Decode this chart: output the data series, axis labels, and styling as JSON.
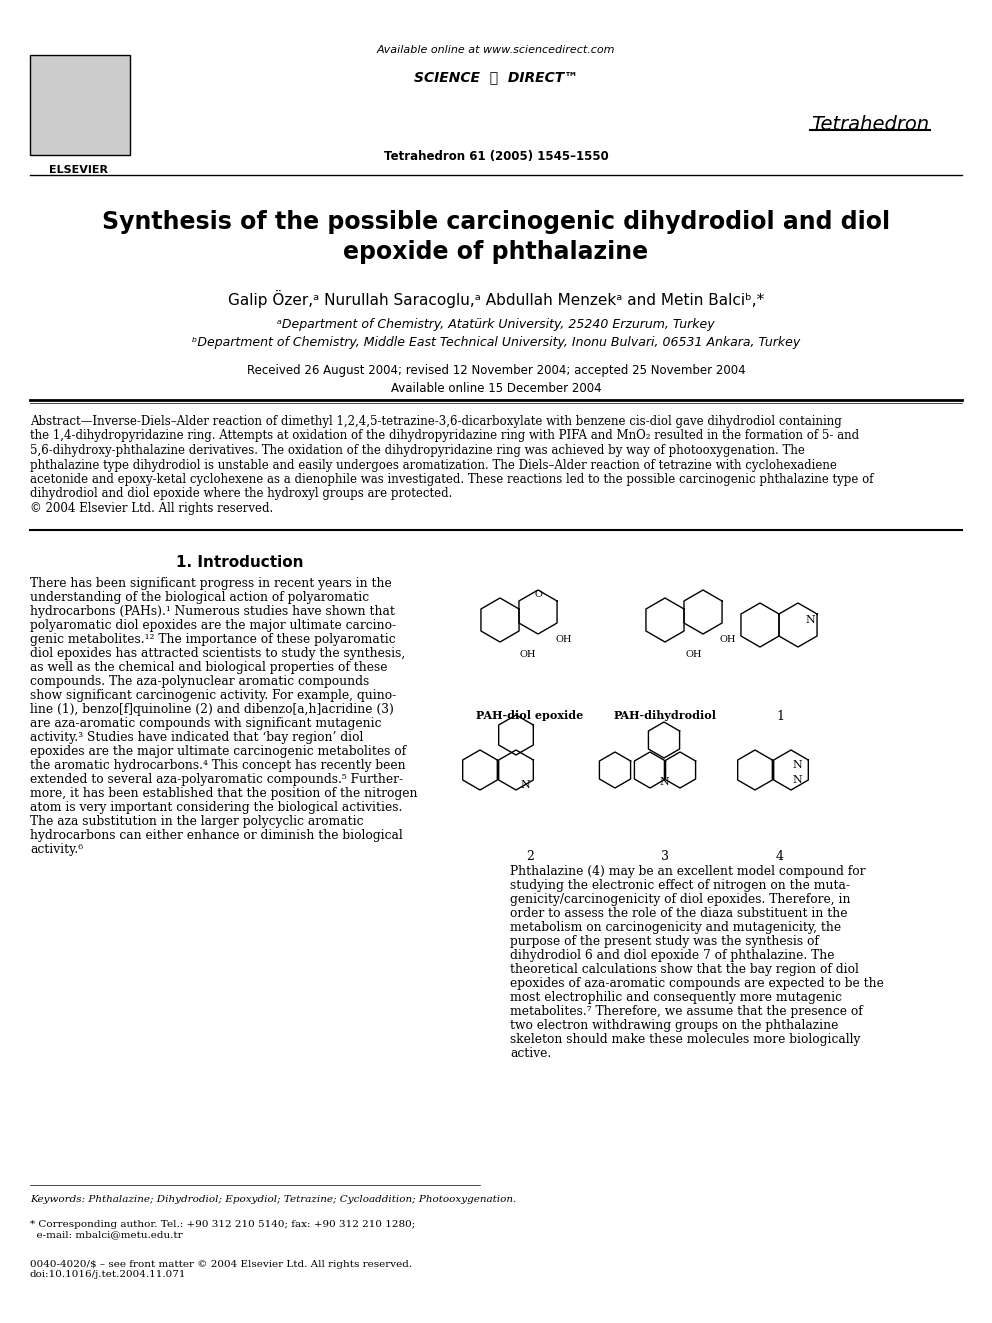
{
  "title": "Synthesis of the possible carcinogenic dihydrodiol and diol\nepoxide of phthalazine",
  "authors": "Galip Özer,ᵃ Nurullah Saracoglu,ᵃ Abdullah Menzekᵃ and Metin Balciᵇ,*",
  "affil_a": "ᵃDepartment of Chemistry, Atatürk University, 25240 Erzurum, Turkey",
  "affil_b": "ᵇDepartment of Chemistry, Middle East Technical University, Inonu Bulvari, 06531 Ankara, Turkey",
  "received": "Received 26 August 2004; revised 12 November 2004; accepted 25 November 2004",
  "available_online": "Available online 15 December 2004",
  "journal_header": "Available online at www.sciencedirect.com",
  "journal_name": "Tetrahedron",
  "journal_issue": "Tetrahedron 61 (2005) 1545–1550",
  "elsevier_text": "ELSEVIER",
  "abstract_title": "Abstract",
  "abstract_text": "—Inverse-Diels–Alder reaction of dimethyl 1,2,4,5-tetrazine-3,6-dicarboxylate with benzene cis-diol gave dihydrodiol containing the 1,4-dihydropyridazine ring. Attempts at oxidation of the dihydropyridazine ring with PIFA and MnO₂ resulted in the formation of 5- and 5,6-dihydroxy-phthalazine derivatives. The oxidation of the dihydropyridazine ring was achieved by way of photooxygenation. The phthalazine type dihydrodiol is unstable and easily undergoes aromatization. The Diels–Alder reaction of tetrazine with cyclohexadiene acetonide and epoxy-ketal cyclohexene as a dienophile was investigated. These reactions led to the possible carcinogenic phthalazine type of dihydrodiol and diol epoxide where the hydroxyl groups are protected.\n© 2004 Elsevier Ltd. All rights reserved.",
  "section1_title": "1. Introduction",
  "intro_text": "There has been significant progress in recent years in the understanding of the biological action of polyaromatic hydrocarbons (PAHs).¹ Numerous studies have shown that polyaromatic diol epoxides are the major ultimate carcinogenic metabolites.¹² The importance of these polyaromatic diol epoxides has attracted scientists to study the synthesis, as well as the chemical and biological properties of these compounds. The aza-polynuclear aromatic compounds show significant carcinogenic activity. For example, quinoline (1), benzo[f]quinoline (2) and dibenzo[a,h]acridine (3) are aza-aromatic compounds with significant mutagenic activity.³ Studies have indicated that ‘bay region’ diol epoxides are the major ultimate carcinogenic metabolites of the aromatic hydrocarbons.⁴ This concept has recently been extended to several aza-polyaromatic compounds.⁵ Furthermore, it has been established that the position of the nitrogen atom is very important considering the biological activities. The aza substitution in the larger polycyclic aromatic hydrocarbons can either enhance or diminish the biological activity.⁶",
  "intro_text2": "Phthalazine (4) may be an excellent model compound for studying the electronic effect of nitrogen on the mutagenicity/carcinogenicity of diol epoxides. Therefore, in order to assess the role of the diaza substituent in the metabolism on carcinogenicity and mutagenicity, the purpose of the present study was the synthesis of dihydrodiol 6 and diol epoxide 7 of phthalazine. The theoretical calculations show that the bay region of diol epoxides of aza-aromatic compounds are expected to be the most electrophilic and consequently more mutagenic metabolites.⁷ Therefore, we assume that the presence of two electron withdrawing groups on the phthalazine skeleton should make these molecules more biologically active.",
  "keywords_text": "Keywords: Phthalazine; Dihydrodiol; Epoxydiol; Tetrazine; Cycloaddition; Photooxygenation.",
  "corresponding": "* Corresponding author. Tel.: +90 312 210 5140; fax: +90 312 210 1280;\n  e-mail: mbalci@metu.edu.tr",
  "footer": "0040-4020/$ – see front matter © 2004 Elsevier Ltd. All rights reserved.\ndoi:10.1016/j.tet.2004.11.071",
  "bg_color": "#ffffff",
  "text_color": "#000000"
}
